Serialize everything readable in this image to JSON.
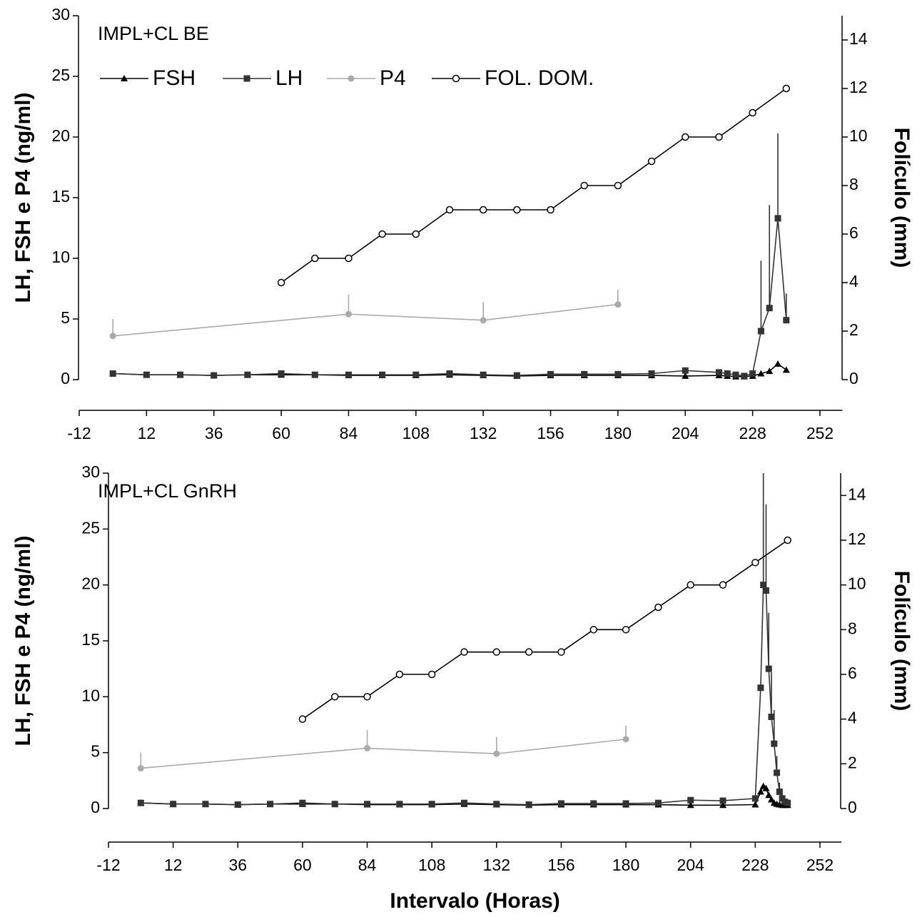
{
  "chart_data": [
    {
      "type": "line",
      "annotation": "IMPL+CL BE",
      "ylabel": "LH, FSH e P4 (ng/ml)",
      "y2label": "Folículo (mm)",
      "xlim": [
        -12,
        260
      ],
      "xticks": [
        -12,
        12,
        36,
        60,
        84,
        108,
        132,
        156,
        180,
        204,
        228,
        252
      ],
      "ylim": [
        0,
        30
      ],
      "yticks": [
        0,
        5,
        10,
        15,
        20,
        25,
        30
      ],
      "y2lim": [
        0,
        15
      ],
      "y2ticks": [
        0,
        2,
        4,
        6,
        8,
        10,
        12,
        14
      ],
      "legend": "upper left",
      "series": [
        {
          "name": "FSH",
          "color": "#000000",
          "marker": "triangle",
          "x": [
            0,
            12,
            24,
            36,
            48,
            60,
            72,
            84,
            96,
            108,
            120,
            132,
            144,
            156,
            168,
            180,
            192,
            204,
            216,
            219,
            222,
            225,
            228,
            231,
            234,
            237,
            240
          ],
          "values": [
            0.5,
            0.4,
            0.4,
            0.35,
            0.4,
            0.4,
            0.4,
            0.35,
            0.35,
            0.35,
            0.4,
            0.35,
            0.3,
            0.35,
            0.35,
            0.35,
            0.35,
            0.3,
            0.35,
            0.3,
            0.25,
            0.25,
            0.3,
            0.5,
            0.7,
            1.3,
            0.8
          ]
        },
        {
          "name": "LH",
          "color": "#333333",
          "marker": "square",
          "x": [
            0,
            12,
            24,
            36,
            48,
            60,
            72,
            84,
            96,
            108,
            120,
            132,
            144,
            156,
            168,
            180,
            192,
            204,
            216,
            219,
            222,
            225,
            228,
            231,
            234,
            237,
            240
          ],
          "values": [
            0.5,
            0.4,
            0.4,
            0.35,
            0.4,
            0.5,
            0.4,
            0.4,
            0.4,
            0.4,
            0.5,
            0.4,
            0.35,
            0.45,
            0.45,
            0.45,
            0.5,
            0.75,
            0.6,
            0.5,
            0.4,
            0.3,
            0.5,
            4.0,
            5.9,
            13.3,
            4.9
          ],
          "errors": [
            null,
            null,
            null,
            null,
            null,
            null,
            null,
            null,
            null,
            null,
            null,
            null,
            null,
            null,
            null,
            null,
            null,
            null,
            null,
            null,
            null,
            null,
            null,
            5.8,
            8.5,
            7.0,
            2.2
          ]
        },
        {
          "name": "P4",
          "color": "#aaaaaa",
          "marker": "circle",
          "x": [
            0,
            84,
            132,
            180
          ],
          "values": [
            3.6,
            5.4,
            4.9,
            6.2
          ],
          "errors": [
            1.4,
            1.6,
            1.5,
            1.2
          ]
        },
        {
          "name": "FOL. DOM.",
          "color": "#000000",
          "marker": "open-circle",
          "axis": "y2",
          "x": [
            60,
            72,
            84,
            96,
            108,
            120,
            132,
            144,
            156,
            168,
            180,
            192,
            204,
            216,
            228,
            240
          ],
          "values": [
            4,
            5,
            5,
            6,
            6,
            7,
            7,
            7,
            7,
            8,
            8,
            9,
            10,
            10,
            11,
            12
          ]
        }
      ]
    },
    {
      "type": "line",
      "annotation": "IMPL+CL GnRH",
      "ylabel": "LH, FSH e P4 (ng/ml)",
      "y2label": "Folículo (mm)",
      "xlabel": "Intervalo (Horas)",
      "xlim": [
        -12,
        260
      ],
      "xticks": [
        -12,
        12,
        36,
        60,
        84,
        108,
        132,
        156,
        180,
        204,
        228,
        252
      ],
      "ylim": [
        0,
        30
      ],
      "yticks": [
        0,
        5,
        10,
        15,
        20,
        25,
        30
      ],
      "y2lim": [
        0,
        15
      ],
      "y2ticks": [
        0,
        2,
        4,
        6,
        8,
        10,
        12,
        14
      ],
      "series": [
        {
          "name": "FSH",
          "color": "#000000",
          "marker": "triangle",
          "x": [
            0,
            12,
            24,
            36,
            48,
            60,
            72,
            84,
            96,
            108,
            120,
            132,
            144,
            156,
            168,
            180,
            192,
            204,
            216,
            228,
            230,
            231,
            232,
            233,
            234,
            235,
            236,
            237,
            238,
            239,
            240
          ],
          "values": [
            0.5,
            0.4,
            0.4,
            0.35,
            0.4,
            0.4,
            0.4,
            0.35,
            0.35,
            0.35,
            0.4,
            0.35,
            0.3,
            0.35,
            0.35,
            0.35,
            0.35,
            0.3,
            0.3,
            0.35,
            1.5,
            2.0,
            1.8,
            1.2,
            0.8,
            0.5,
            0.4,
            0.35,
            0.3,
            0.3,
            0.3
          ]
        },
        {
          "name": "LH",
          "color": "#333333",
          "marker": "square",
          "x": [
            0,
            12,
            24,
            36,
            48,
            60,
            72,
            84,
            96,
            108,
            120,
            132,
            144,
            156,
            168,
            180,
            192,
            204,
            216,
            228,
            230,
            231,
            232,
            233,
            234,
            235,
            236,
            237,
            238,
            239,
            240
          ],
          "values": [
            0.5,
            0.4,
            0.4,
            0.35,
            0.4,
            0.5,
            0.4,
            0.4,
            0.4,
            0.4,
            0.5,
            0.4,
            0.35,
            0.45,
            0.45,
            0.45,
            0.5,
            0.75,
            0.7,
            0.9,
            10.8,
            20.0,
            19.5,
            12.5,
            8.2,
            5.8,
            3.2,
            1.5,
            0.9,
            0.6,
            0.5
          ],
          "errors": [
            null,
            null,
            null,
            null,
            null,
            null,
            null,
            null,
            null,
            null,
            null,
            null,
            null,
            null,
            null,
            null,
            null,
            null,
            null,
            null,
            null,
            12,
            7.7,
            5,
            4,
            3,
            1.5,
            0.8,
            0.4,
            null,
            null
          ]
        },
        {
          "name": "P4",
          "color": "#aaaaaa",
          "marker": "circle",
          "x": [
            0,
            84,
            132,
            180
          ],
          "values": [
            3.6,
            5.4,
            4.9,
            6.2
          ],
          "errors": [
            1.4,
            1.6,
            1.5,
            1.2
          ]
        },
        {
          "name": "FOL. DOM.",
          "color": "#000000",
          "marker": "open-circle",
          "axis": "y2",
          "x": [
            60,
            72,
            84,
            96,
            108,
            120,
            132,
            144,
            156,
            168,
            180,
            192,
            204,
            216,
            228,
            240
          ],
          "values": [
            4,
            5,
            5,
            6,
            6,
            7,
            7,
            7,
            7,
            8,
            8,
            9,
            10,
            10,
            11,
            12
          ]
        }
      ]
    }
  ]
}
